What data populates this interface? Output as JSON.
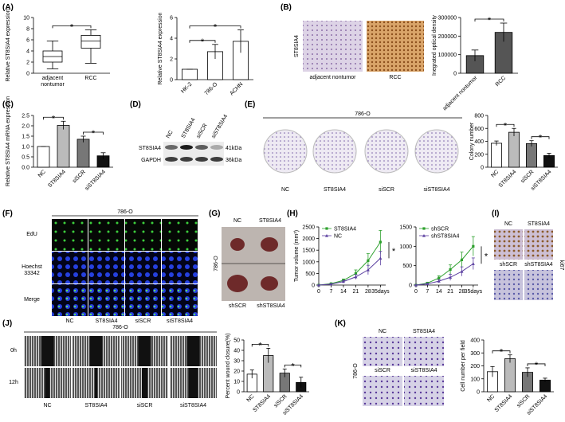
{
  "figure": {
    "panel_letters": [
      "(A)",
      "(B)",
      "(C)",
      "(D)",
      "(E)",
      "(F)",
      "(G)",
      "(H)",
      "(I)",
      "(J)",
      "(K)"
    ],
    "B": {
      "row_label": "ST8SIA4",
      "captions": [
        "adjacent nontumor",
        "RCC"
      ]
    },
    "D": {
      "columns": [
        "NC",
        "ST8SIA4",
        "siSCR",
        "siST8SIA4"
      ],
      "rows": [
        "ST8SIA4",
        "GAPDH"
      ],
      "sizes": [
        "41kDa",
        "36kDa"
      ]
    },
    "E": {
      "cell_line": "786-O",
      "captions": [
        "NC",
        "ST8SIA4",
        "siSCR",
        "siST8SIA4"
      ]
    },
    "F": {
      "cell_line": "786-O",
      "rows": [
        "EdU",
        "Hoechst 33342",
        "Merge"
      ],
      "columns": [
        "NC",
        "ST8SIA4",
        "siSCR",
        "siST8SIA4"
      ]
    },
    "G": {
      "cell_line": "786-O",
      "top": [
        "NC",
        "ST8SIA4"
      ],
      "bottom": [
        "shSCR",
        "shST8SIA4"
      ]
    },
    "I": {
      "stain": "ki67",
      "top": [
        "NC",
        "ST8SIA4"
      ],
      "bottom": [
        "shSCR",
        "shST8SIA4"
      ]
    },
    "J": {
      "cell_line": "786-O",
      "rows": [
        "0h",
        "12h"
      ],
      "columns": [
        "NC",
        "ST8SIA4",
        "siSCR",
        "siST8SIA4"
      ]
    },
    "K": {
      "cell_line": "786-O",
      "top": [
        "NC",
        "ST8SIA4"
      ],
      "bottom": [
        "siSCR",
        "siST8SIA4"
      ]
    }
  },
  "chart_data": [
    {
      "type": "box",
      "y_label": "Relative ST8SIA4 expression",
      "categories": [
        "adjacent nontumor",
        "RCC"
      ],
      "values": [
        [
          0.8,
          2,
          3,
          4,
          5.8
        ],
        [
          1.8,
          4.5,
          5.8,
          6.8,
          7.8
        ]
      ],
      "ylim": [
        0,
        10
      ],
      "yticks": [
        0,
        2,
        4,
        6,
        8,
        10
      ],
      "annotations": [
        "*"
      ]
    },
    {
      "type": "bar",
      "y_label": "Relative ST8SIA4 expression",
      "categories": [
        "HK-2",
        "786-O",
        "ACHN"
      ],
      "values": [
        1,
        2.7,
        3.7
      ],
      "errors": [
        0,
        0.7,
        1.1
      ],
      "colors": [
        "#ffffff",
        "#ffffff",
        "#ffffff"
      ],
      "ylim": [
        0,
        6
      ],
      "yticks": [
        0,
        2,
        4,
        6
      ],
      "annotations": [
        "*",
        "*"
      ]
    },
    {
      "type": "bar",
      "y_label": "Inegrated optical density",
      "categories": [
        "adjacent nontumor",
        "RCC"
      ],
      "values": [
        95000,
        220000
      ],
      "errors": [
        30000,
        50000
      ],
      "colors": [
        "#555555",
        "#555555"
      ],
      "ylim": [
        0,
        300000
      ],
      "yticks": [
        0,
        100000,
        200000,
        300000
      ],
      "annotations": [
        "*"
      ]
    },
    {
      "type": "bar",
      "y_label": "Relative ST8SIA4 mRNA expression",
      "categories": [
        "NC",
        "ST8SIA4",
        "siSCR",
        "siST8SIA4"
      ],
      "values": [
        1,
        2.02,
        1.35,
        0.55
      ],
      "errors": [
        0,
        0.2,
        0.15,
        0.15
      ],
      "colors": [
        "#ffffff",
        "#bbbbbb",
        "#777777",
        "#111111"
      ],
      "ylim": [
        0,
        2.5
      ],
      "yticks": [
        {
          "value": 0,
          "label": "0.0"
        },
        0.5,
        {
          "value": 1,
          "label": "1.0"
        },
        1.5,
        {
          "value": 2,
          "label": "2.0"
        },
        2.5
      ],
      "annotations": [
        "*",
        "*"
      ]
    },
    {
      "type": "bar",
      "y_label": "Colony number",
      "categories": [
        "NC",
        "ST8SIA4",
        "siSCR",
        "siST8SIA4"
      ],
      "values": [
        370,
        540,
        365,
        180
      ],
      "errors": [
        35,
        60,
        45,
        35
      ],
      "colors": [
        "#ffffff",
        "#bbbbbb",
        "#777777",
        "#111111"
      ],
      "ylim": [
        0,
        800
      ],
      "yticks": [
        0,
        200,
        400,
        600,
        800
      ],
      "annotations": [
        "*",
        "*"
      ]
    },
    {
      "type": "line",
      "y_label": "Tumor volume (mm³)",
      "x": [
        0,
        7,
        14,
        21,
        28,
        35
      ],
      "xlim": [
        0,
        38
      ],
      "xticks": [
        0,
        7,
        14,
        21,
        28,
        {
          "value": 35,
          "label": "35days"
        }
      ],
      "ylim": [
        0,
        2500
      ],
      "yticks": [
        0,
        500,
        1000,
        1500,
        2000,
        2500
      ],
      "series": [
        {
          "name": "ST8SIA4",
          "color": "#2ca02c",
          "values": [
            0,
            60,
            200,
            500,
            1050,
            1850
          ],
          "errors": [
            0,
            20,
            60,
            150,
            300,
            500
          ]
        },
        {
          "name": "NC",
          "color": "#5b3fa0",
          "values": [
            0,
            40,
            150,
            350,
            650,
            1150
          ],
          "errors": [
            0,
            15,
            50,
            100,
            200,
            300
          ]
        }
      ],
      "annotations": [
        "*"
      ]
    },
    {
      "type": "line",
      "x": [
        0,
        7,
        14,
        21,
        28,
        35
      ],
      "xlim": [
        0,
        38
      ],
      "xticks": [
        0,
        7,
        14,
        21,
        28,
        {
          "value": 35,
          "label": "35days"
        }
      ],
      "ylim": [
        0,
        1500
      ],
      "yticks": [
        0,
        500,
        1000,
        1500
      ],
      "series": [
        {
          "name": "shSCR",
          "color": "#2ca02c",
          "values": [
            0,
            50,
            180,
            400,
            650,
            1000
          ],
          "errors": [
            0,
            20,
            60,
            120,
            200,
            250
          ]
        },
        {
          "name": "shST8SIA4",
          "color": "#5b3fa0",
          "values": [
            0,
            30,
            100,
            200,
            350,
            550
          ],
          "errors": [
            0,
            10,
            40,
            80,
            120,
            150
          ]
        }
      ],
      "annotations": [
        "*"
      ]
    },
    {
      "type": "bar",
      "y_label": "Percent wound closure(%)",
      "categories": [
        "NC",
        "ST8SIA4",
        "siSCR",
        "siST8SIA4"
      ],
      "values": [
        17,
        35,
        18,
        9
      ],
      "errors": [
        4,
        7,
        4,
        5
      ],
      "colors": [
        "#ffffff",
        "#bbbbbb",
        "#777777",
        "#111111"
      ],
      "ylim": [
        0,
        50
      ],
      "yticks": [
        0,
        10,
        20,
        30,
        40,
        50
      ],
      "annotations": [
        "*",
        "*"
      ]
    },
    {
      "type": "bar",
      "y_label": "Cell number per field",
      "categories": [
        "NC",
        "ST8SIA4",
        "siSCR",
        "siST8SIA4"
      ],
      "values": [
        155,
        255,
        150,
        90
      ],
      "errors": [
        40,
        30,
        35,
        15
      ],
      "colors": [
        "#ffffff",
        "#bbbbbb",
        "#777777",
        "#111111"
      ],
      "ylim": [
        0,
        400
      ],
      "yticks": [
        0,
        100,
        200,
        300,
        400
      ],
      "annotations": [
        "*",
        "*"
      ]
    }
  ]
}
